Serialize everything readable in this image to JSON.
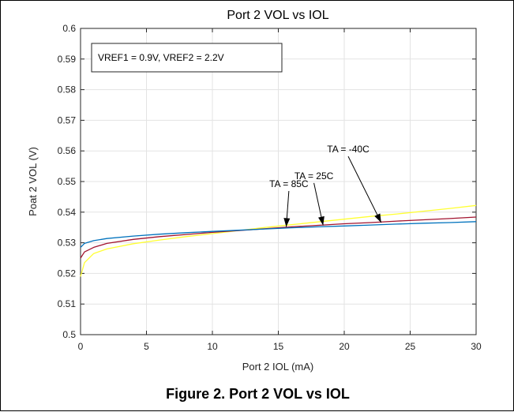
{
  "chart_data": {
    "type": "line",
    "title": "Port 2 VOL vs IOL",
    "xlabel": "Port 2 IOL (mA)",
    "ylabel": "Poat 2 VOL (V)",
    "xlim": [
      0,
      30
    ],
    "ylim": [
      0.5,
      0.6
    ],
    "x_ticks": [
      "0",
      "5",
      "10",
      "15",
      "20",
      "25",
      "30"
    ],
    "y_ticks": [
      "0.5",
      "0.51",
      "0.52",
      "0.53",
      "0.54",
      "0.55",
      "0.56",
      "0.57",
      "0.58",
      "0.59",
      "0.6"
    ],
    "grid": true,
    "legend_box": "VREF1 = 0.9V, VREF2 = 2.2V",
    "series": [
      {
        "name": "TA = -40C",
        "color": "#ffff33",
        "x": [
          0,
          0.3,
          1,
          2,
          4,
          6,
          8,
          10,
          12,
          14,
          16,
          18,
          20,
          22,
          24,
          26,
          28,
          30
        ],
        "y": [
          0.519,
          0.5235,
          0.5265,
          0.528,
          0.5297,
          0.5309,
          0.532,
          0.533,
          0.534,
          0.535,
          0.5359,
          0.5368,
          0.5377,
          0.5386,
          0.5394,
          0.5403,
          0.5412,
          0.5422
        ]
      },
      {
        "name": "TA = 25C",
        "color": "#a2142f",
        "x": [
          0,
          0.3,
          1,
          2,
          4,
          6,
          8,
          10,
          12,
          14,
          16,
          18,
          20,
          22,
          24,
          26,
          28,
          30
        ],
        "y": [
          0.525,
          0.527,
          0.5285,
          0.5298,
          0.5311,
          0.532,
          0.5327,
          0.5334,
          0.534,
          0.5346,
          0.5352,
          0.5357,
          0.5362,
          0.5366,
          0.5371,
          0.5375,
          0.5379,
          0.5384
        ]
      },
      {
        "name": "TA = 85C",
        "color": "#0072bd",
        "x": [
          0,
          0.3,
          1,
          2,
          4,
          6,
          8,
          10,
          12,
          14,
          16,
          18,
          20,
          22,
          24,
          26,
          28,
          30
        ],
        "y": [
          0.5285,
          0.5298,
          0.5307,
          0.5314,
          0.5322,
          0.5328,
          0.5333,
          0.5337,
          0.5341,
          0.5345,
          0.5349,
          0.5352,
          0.5355,
          0.5358,
          0.5361,
          0.5364,
          0.5366,
          0.5369
        ]
      }
    ],
    "annotations": [
      {
        "text": "TA = 85C",
        "label_x": 15.8,
        "label_y": 0.5482,
        "point_x": 15.6,
        "point_y": 0.5352
      },
      {
        "text": "TA = 25C",
        "label_x": 17.7,
        "label_y": 0.5508,
        "point_x": 18.4,
        "point_y": 0.5357
      },
      {
        "text": "TA = -40C",
        "label_x": 20.3,
        "label_y": 0.5595,
        "point_x": 22.8,
        "point_y": 0.5366
      }
    ]
  },
  "figure_caption": "Figure 2. Port 2 VOL vs IOL"
}
